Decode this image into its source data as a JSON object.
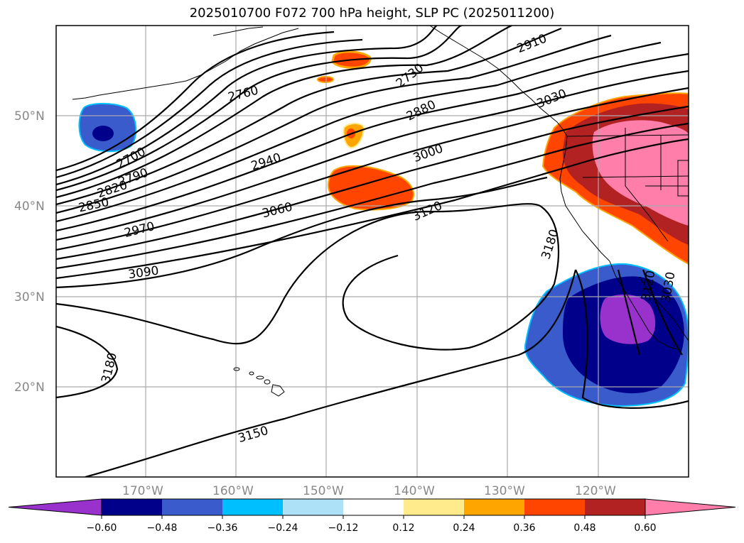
{
  "title": "2025010700 F072 700 hPa height, SLP PC (2025011200)",
  "lat_labels": [
    "50°N",
    "40°N",
    "30°N",
    "20°N"
  ],
  "lon_labels": [
    "170°W",
    "160°W",
    "150°W",
    "140°W",
    "130°W",
    "120°W"
  ],
  "contour_labels": [
    "2700",
    "2730",
    "2760",
    "2790",
    "2820",
    "2850",
    "2880",
    "2910",
    "2940",
    "2970",
    "3000",
    "3030",
    "3060",
    "3090",
    "3120",
    "3150",
    "3180",
    "3180",
    "3120",
    "3180",
    "3030"
  ],
  "colorbar": {
    "ticks": [
      "−0.60",
      "−0.48",
      "−0.36",
      "−0.24",
      "−0.12",
      "0.12",
      "0.24",
      "0.36",
      "0.48",
      "0.60"
    ],
    "colors": [
      "#9932CC",
      "#00008B",
      "#3A5BCC",
      "#00BFFF",
      "#ADE1F7",
      "#FFFFFF",
      "#FFEA8C",
      "#FFA500",
      "#FF4500",
      "#B22222",
      "#FF7FAA"
    ]
  }
}
